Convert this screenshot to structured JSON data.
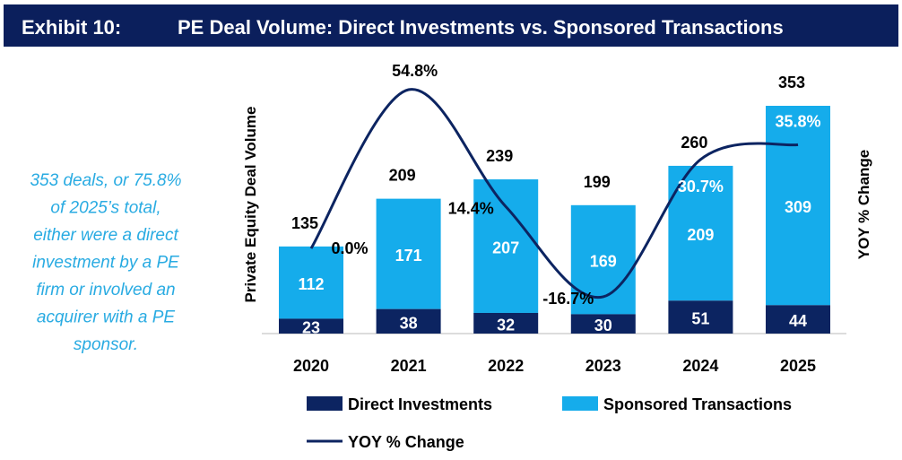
{
  "header": {
    "exhibit": "Exhibit 10:",
    "title": "PE Deal Volume: Direct Investments vs. Sponsored Transactions"
  },
  "callout_lines": [
    "353 deals, or 75.8%",
    "of 2025’s total,",
    "either were a direct",
    "investment by a PE",
    "firm or involved an",
    "acquirer with a PE",
    "sponsor."
  ],
  "colors": {
    "header_bg": "#0b1f5c",
    "direct": "#0c2461",
    "sponsored": "#15aceb",
    "line": "#0c2461",
    "callout": "#29abe2"
  },
  "chart_data": {
    "type": "bar",
    "stacked": true,
    "categories": [
      "2020",
      "2021",
      "2022",
      "2023",
      "2024",
      "2025"
    ],
    "series": [
      {
        "name": "Direct Investments",
        "values": [
          23,
          38,
          32,
          30,
          51,
          44
        ]
      },
      {
        "name": "Sponsored Transactions",
        "values": [
          112,
          171,
          207,
          169,
          209,
          309
        ]
      }
    ],
    "totals": [
      135,
      209,
      239,
      199,
      260,
      353
    ],
    "line_series": {
      "name": "YOY % Change",
      "values": [
        0.0,
        54.8,
        14.4,
        -16.7,
        30.7,
        35.8
      ],
      "labels": [
        "0.0%",
        "54.8%",
        "14.4%",
        "-16.7%",
        "30.7%",
        "35.8%"
      ]
    },
    "ylabel": "Private Equity Deal Volume",
    "y2label": "YOY % Change",
    "ylim": [
      0,
      353
    ],
    "y2lim": [
      -29.4,
      85.6
    ],
    "grid": false,
    "legend": "bottom"
  }
}
